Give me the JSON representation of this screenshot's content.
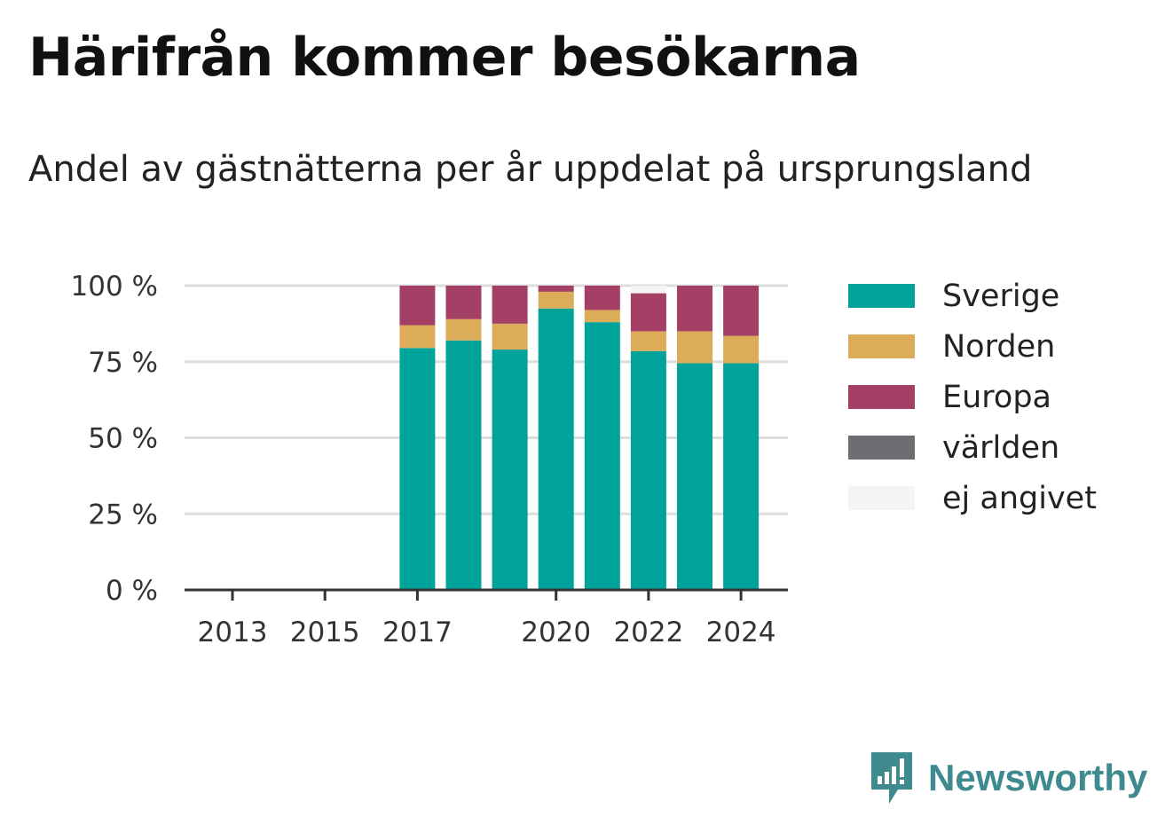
{
  "header": {
    "title": "Härifrån kommer besökarna",
    "subtitle": "Andel av gästnätterna per år uppdelat på ursprungsland"
  },
  "brand": {
    "name": "Newsworthy",
    "color": "#3e8a8f"
  },
  "chart_data": {
    "type": "bar",
    "stacked": true,
    "categories": [
      "2013",
      "2014",
      "2015",
      "2016",
      "2017",
      "2018",
      "2019",
      "2020",
      "2021",
      "2022",
      "2023",
      "2024"
    ],
    "x_tick_labels": [
      "2013",
      "2015",
      "2017",
      "2020",
      "2022",
      "2024"
    ],
    "y_tick_labels": [
      "0 %",
      "25 %",
      "50 %",
      "75 %",
      "100 %"
    ],
    "y_ticks": [
      0,
      25,
      50,
      75,
      100
    ],
    "ylim": [
      0,
      100
    ],
    "grid": true,
    "legend_position": "right",
    "series": [
      {
        "name": "Sverige",
        "color": "#00a39a",
        "values": [
          null,
          null,
          null,
          null,
          79.5,
          82,
          79,
          92.5,
          88,
          78.5,
          74.5,
          74.5
        ]
      },
      {
        "name": "Norden",
        "color": "#dcac58",
        "values": [
          null,
          null,
          null,
          null,
          7.5,
          7,
          8.5,
          5.5,
          4,
          6.5,
          10.5,
          9
        ]
      },
      {
        "name": "Europa",
        "color": "#a43f65",
        "values": [
          null,
          null,
          null,
          null,
          13,
          11,
          12.5,
          2,
          8,
          12.5,
          15,
          16.5
        ]
      },
      {
        "name": "världen",
        "color": "#6d6d72",
        "values": [
          null,
          null,
          null,
          null,
          0,
          0,
          0,
          0,
          0,
          0,
          0,
          0
        ]
      },
      {
        "name": "ej angivet",
        "color": "#f4f4f3",
        "values": [
          null,
          null,
          null,
          null,
          0,
          0,
          0,
          0,
          0,
          2.5,
          0,
          0
        ]
      }
    ]
  }
}
